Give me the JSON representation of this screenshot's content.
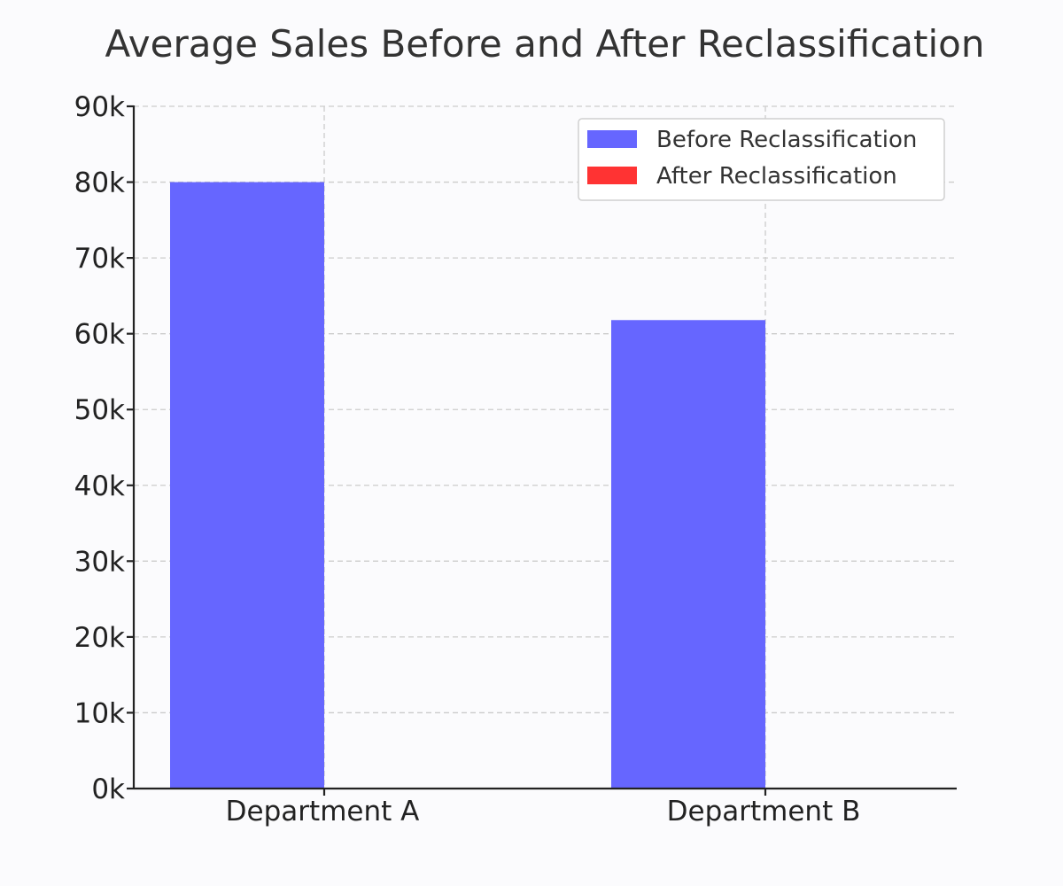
{
  "chart_data": {
    "type": "bar",
    "title": "Average Sales Before and After Reclassification",
    "xlabel": "",
    "ylabel": "",
    "categories": [
      "Department A",
      "Department B"
    ],
    "series": [
      {
        "name": "Before Reclassification",
        "values": [
          80000,
          61800
        ],
        "color": "#6666ff"
      },
      {
        "name": "After Reclassification",
        "values": [
          0,
          0
        ],
        "color": "#ff3333"
      }
    ],
    "ylim": [
      0,
      90000
    ],
    "yticks": [
      0,
      10000,
      20000,
      30000,
      40000,
      50000,
      60000,
      70000,
      80000,
      90000
    ],
    "ytick_labels": [
      "0k",
      "10k",
      "20k",
      "30k",
      "40k",
      "50k",
      "60k",
      "70k",
      "80k",
      "90k"
    ],
    "grid": true,
    "legend_position": "top-right"
  }
}
